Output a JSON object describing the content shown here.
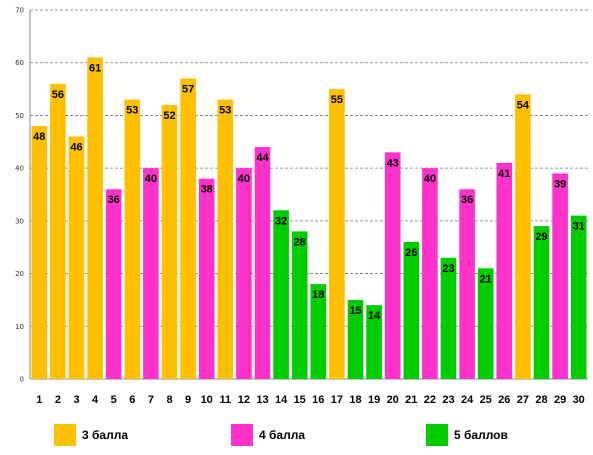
{
  "chart_data": {
    "type": "bar",
    "categories": [
      "1",
      "2",
      "3",
      "4",
      "5",
      "6",
      "7",
      "8",
      "9",
      "10",
      "11",
      "12",
      "13",
      "14",
      "15",
      "16",
      "17",
      "18",
      "19",
      "20",
      "21",
      "22",
      "23",
      "24",
      "25",
      "26",
      "27",
      "28",
      "29",
      "30"
    ],
    "values": [
      48,
      56,
      46,
      61,
      36,
      53,
      40,
      52,
      57,
      38,
      53,
      40,
      44,
      32,
      28,
      18,
      55,
      15,
      14,
      43,
      26,
      40,
      23,
      36,
      21,
      41,
      54,
      29,
      39,
      31
    ],
    "groups": [
      3,
      3,
      3,
      3,
      4,
      3,
      4,
      3,
      3,
      4,
      3,
      4,
      4,
      5,
      5,
      5,
      3,
      5,
      5,
      4,
      5,
      4,
      5,
      4,
      5,
      4,
      3,
      5,
      4,
      5
    ],
    "ylim": [
      0,
      70
    ],
    "yticks": [
      0,
      10,
      20,
      30,
      40,
      50,
      60,
      70
    ],
    "grid": true,
    "legend_position": "bottom",
    "legend": [
      {
        "group": 3,
        "label": "3 балла",
        "color": "#FFC000"
      },
      {
        "group": 4,
        "label": "4 балла",
        "color": "#FF33CC"
      },
      {
        "group": 5,
        "label": "5 баллов",
        "color": "#00CC00"
      }
    ]
  }
}
